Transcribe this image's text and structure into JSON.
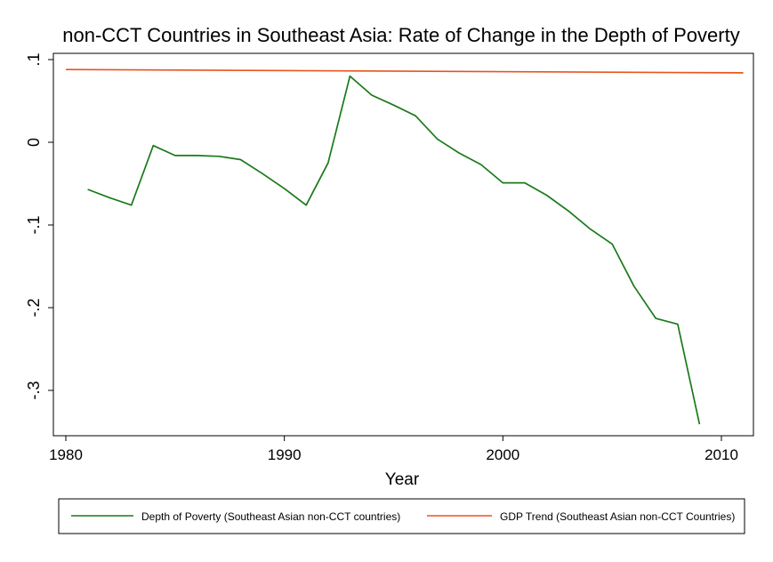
{
  "chart_data": {
    "type": "line",
    "title": "non-CCT Countries in Southeast Asia: Rate of Change in the Depth of Poverty",
    "xlabel": "Year",
    "ylabel": "",
    "xlim": [
      1980,
      2012
    ],
    "ylim": [
      -0.35,
      0.1
    ],
    "x_ticks": [
      1980,
      1990,
      2000,
      2010
    ],
    "x_tick_labels": [
      "1980",
      "1990",
      "2000",
      "2010"
    ],
    "y_ticks": [
      0.1,
      0,
      -0.1,
      -0.2,
      -0.3
    ],
    "y_tick_labels": [
      ".1",
      "0",
      "-.1",
      "-.2",
      "-.3"
    ],
    "grid": false,
    "legend_position": "bottom",
    "series": [
      {
        "name": "Depth of Poverty (Southeast Asian non-CCT countries)",
        "color": "#1a7a1a",
        "x": [
          1981,
          1982,
          1983,
          1984,
          1985,
          1986,
          1987,
          1988,
          1989,
          1990,
          1991,
          1992,
          1993,
          1994,
          1995,
          1996,
          1997,
          1998,
          1999,
          2000,
          2001,
          2002,
          2003,
          2004,
          2005,
          2006,
          2007,
          2008,
          2009
        ],
        "y": [
          -0.057,
          -0.067,
          -0.076,
          -0.004,
          -0.016,
          -0.016,
          -0.017,
          -0.021,
          -0.038,
          -0.056,
          -0.076,
          -0.025,
          0.08,
          0.057,
          0.045,
          0.032,
          0.004,
          -0.013,
          -0.027,
          -0.049,
          -0.049,
          -0.064,
          -0.083,
          -0.105,
          -0.123,
          -0.174,
          -0.213,
          -0.22,
          -0.341
        ]
      },
      {
        "name": "GDP Trend (Southeast Asian non-CCT Countries)",
        "color": "#e8541e",
        "x": [
          1980,
          2011
        ],
        "y": [
          0.088,
          0.084
        ]
      }
    ]
  }
}
